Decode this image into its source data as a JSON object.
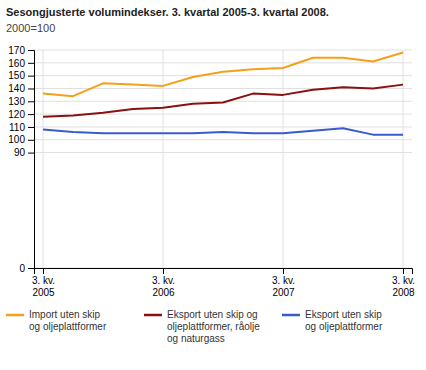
{
  "chart_data": {
    "type": "line",
    "title": "Sesongjusterte volumindekser. 3. kvartal 2005-3. kvartal 2008.",
    "subtitle": "2000=100",
    "categories": [
      "3. kv.\n2005",
      null,
      null,
      null,
      "3. kv.\n2006",
      null,
      null,
      null,
      "3. kv.\n2007",
      null,
      null,
      null,
      "3. kv.\n2008"
    ],
    "series": [
      {
        "name": "Import uten skip\nog oljeplattformer",
        "color": "#f5a01a",
        "values": [
          136,
          134,
          144,
          143,
          142,
          149,
          153,
          155,
          156,
          164,
          164,
          161,
          168
        ]
      },
      {
        "name": "Eksport uten skip og\noljeplattformer, råolje\nog naturgass",
        "color": "#8b1010",
        "values": [
          118,
          119,
          121,
          124,
          125,
          128,
          129,
          136,
          135,
          139,
          141,
          140,
          143
        ]
      },
      {
        "name": "Eksport uten skip\nog oljeplattformer",
        "color": "#3a5bcc",
        "values": [
          108,
          106,
          105,
          105,
          105,
          105,
          106,
          105,
          105,
          107,
          109,
          104,
          104
        ]
      }
    ],
    "ylim": [
      0,
      170
    ],
    "yticks": [
      0,
      90,
      100,
      110,
      120,
      130,
      140,
      150,
      160,
      170
    ],
    "grid": true,
    "legend": "bottom"
  }
}
